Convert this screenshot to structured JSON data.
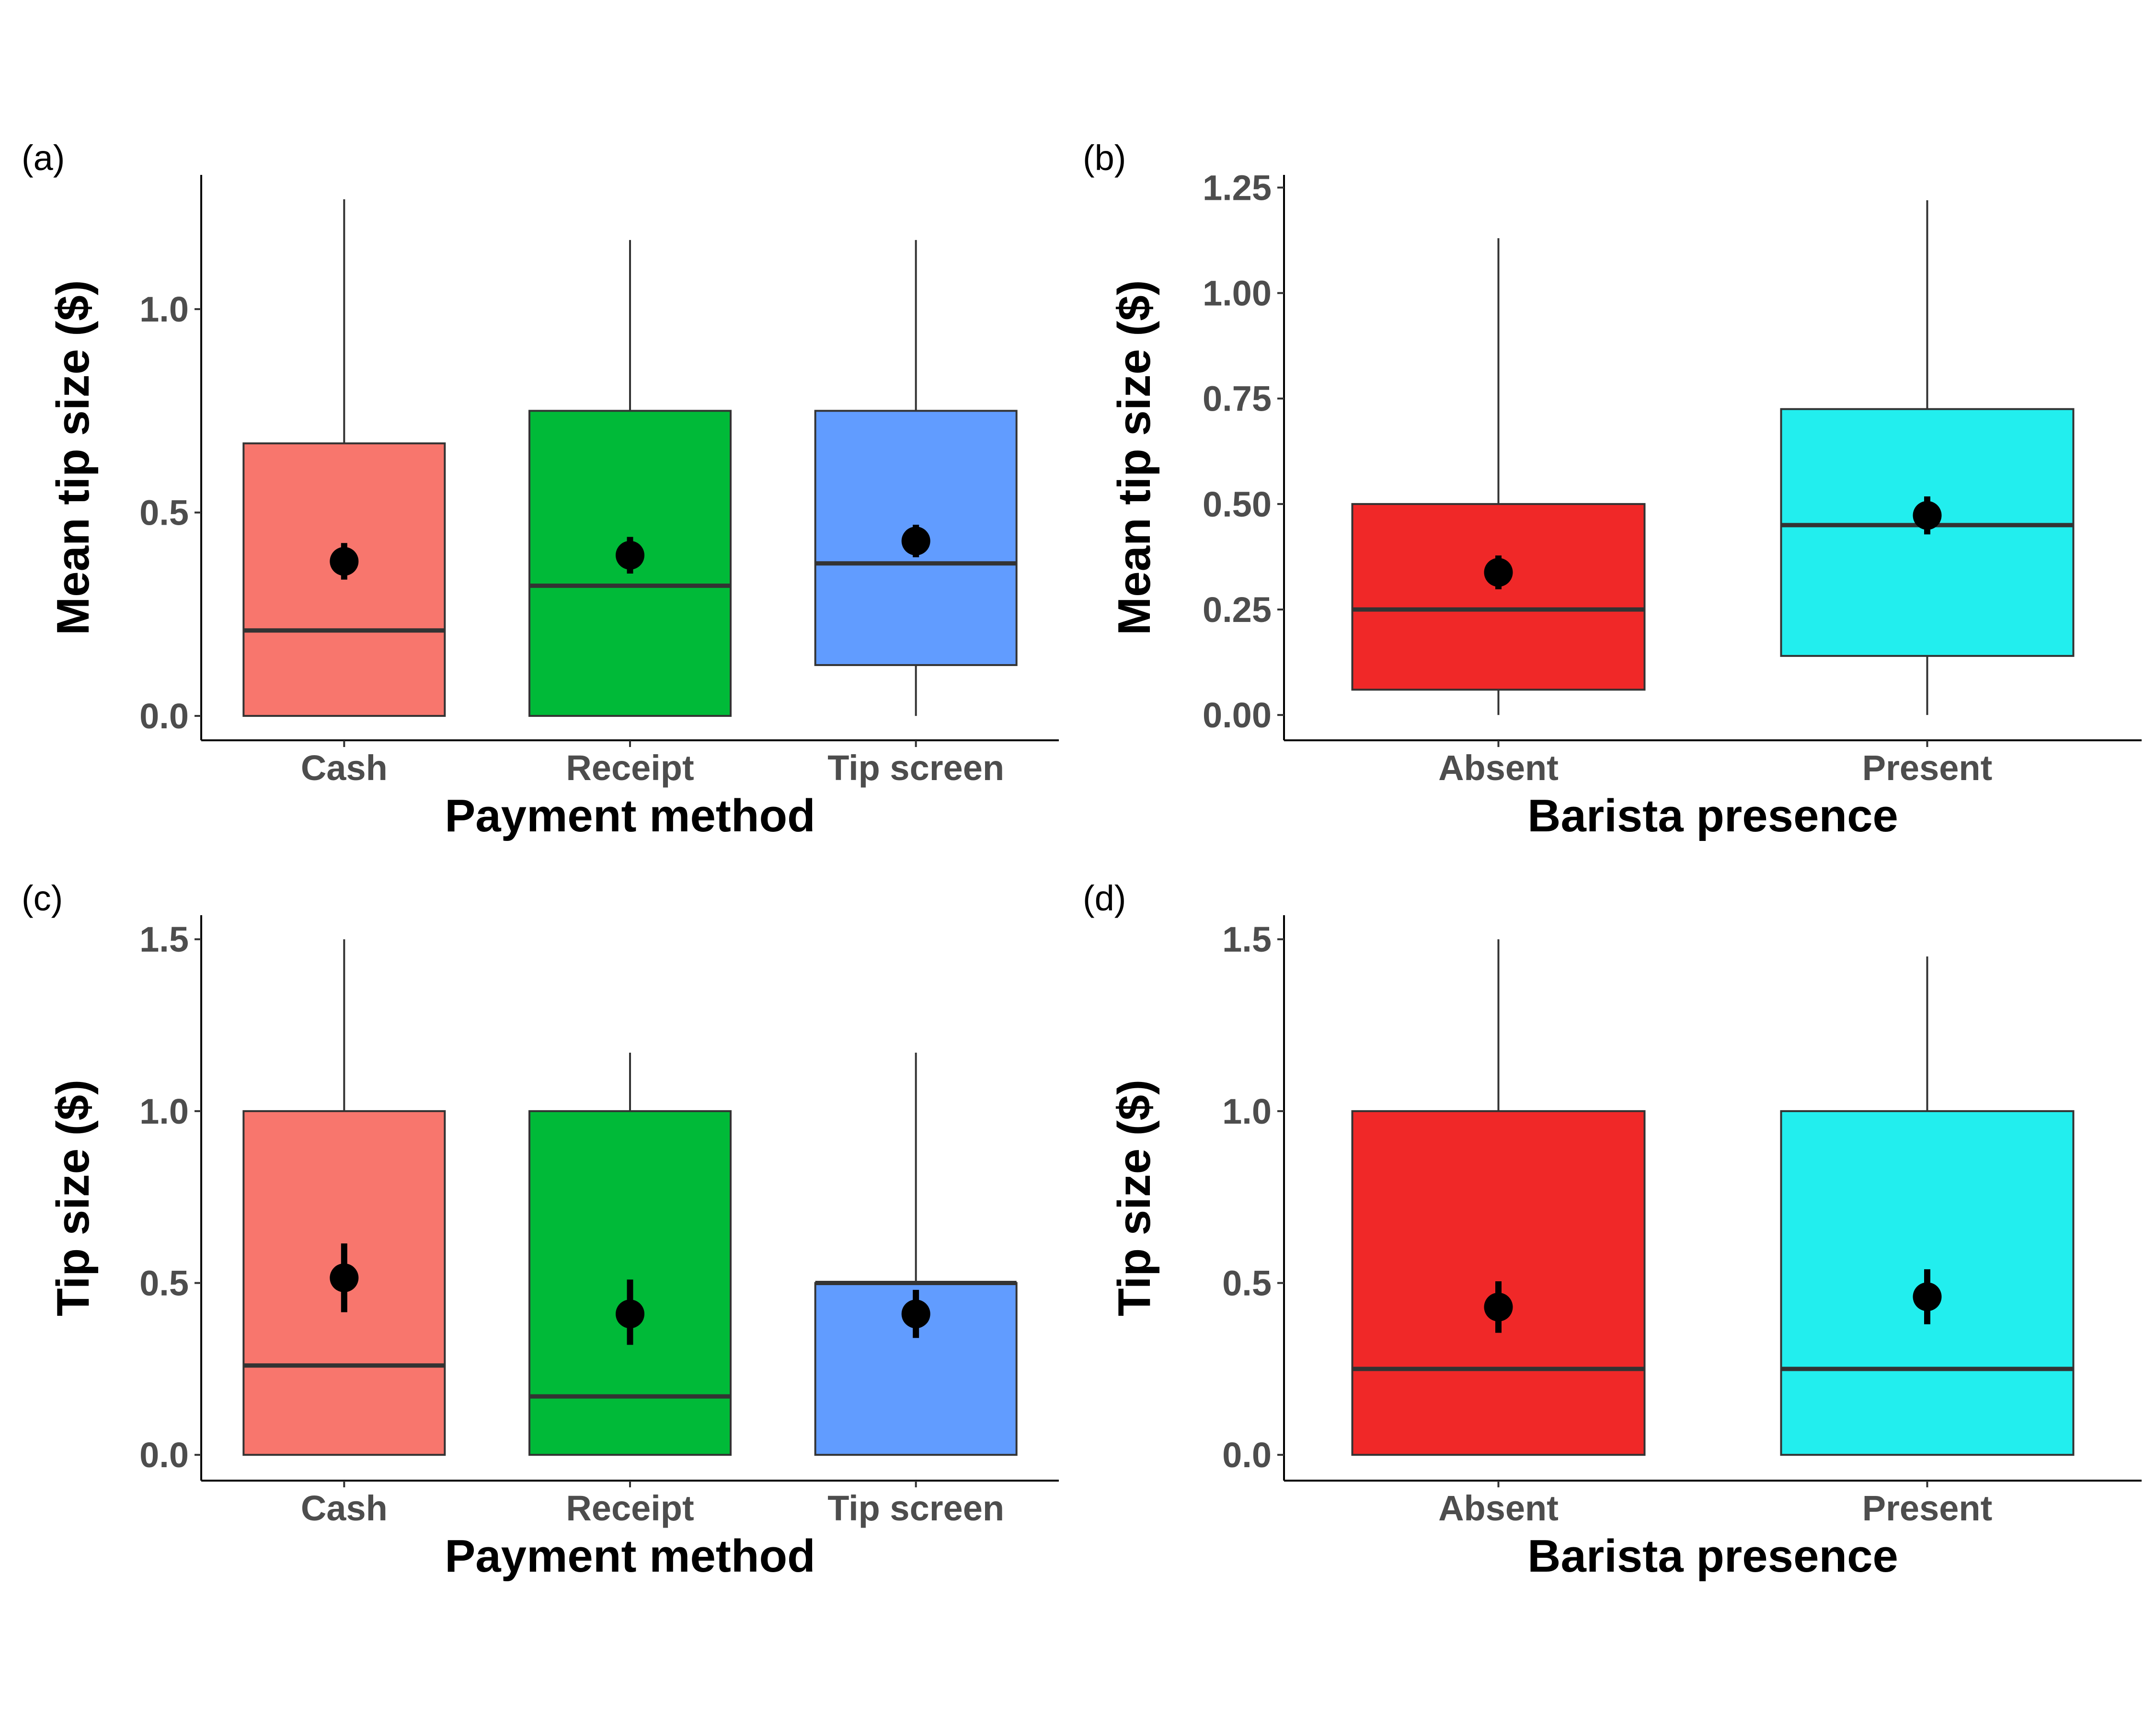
{
  "chart_data": [
    {
      "panel_label": "(a)",
      "type": "boxplot",
      "xlabel": "Payment method",
      "ylabel": "Mean tip size ($)",
      "ylim": [
        -0.06,
        1.33
      ],
      "yticks": [
        0.0,
        0.5,
        1.0
      ],
      "ytick_labels": [
        "0.0",
        "0.5",
        "1.0"
      ],
      "grid": false,
      "categories": [
        "Cash",
        "Receipt",
        "Tip screen"
      ],
      "colors": [
        "#F8766D",
        "#00BA38",
        "#619CFF"
      ],
      "boxes": [
        {
          "whisker_low": 0.0,
          "q1": 0.0,
          "median": 0.21,
          "q3": 0.67,
          "whisker_high": 1.27
        },
        {
          "whisker_low": 0.0,
          "q1": 0.0,
          "median": 0.32,
          "q3": 0.75,
          "whisker_high": 1.17
        },
        {
          "whisker_low": 0.0,
          "q1": 0.125,
          "median": 0.375,
          "q3": 0.75,
          "whisker_high": 1.17
        }
      ],
      "means": [
        0.38,
        0.395,
        0.43
      ],
      "error_bars": [
        [
          0.335,
          0.425
        ],
        [
          0.35,
          0.44
        ],
        [
          0.39,
          0.47
        ]
      ]
    },
    {
      "panel_label": "(b)",
      "type": "boxplot",
      "xlabel": "Barista presence",
      "ylabel": "Mean tip size ($)",
      "ylim": [
        -0.06,
        1.28
      ],
      "yticks": [
        0.0,
        0.25,
        0.5,
        0.75,
        1.0,
        1.25
      ],
      "ytick_labels": [
        "0.00",
        "0.25",
        "0.50",
        "0.75",
        "1.00",
        "1.25"
      ],
      "grid": false,
      "categories": [
        "Absent",
        "Present"
      ],
      "colors": [
        "#F02828",
        "#22EEEE"
      ],
      "boxes": [
        {
          "whisker_low": 0.0,
          "q1": 0.06,
          "median": 0.25,
          "q3": 0.5,
          "whisker_high": 1.13
        },
        {
          "whisker_low": 0.0,
          "q1": 0.14,
          "median": 0.45,
          "q3": 0.725,
          "whisker_high": 1.22
        }
      ],
      "means": [
        0.338,
        0.473
      ],
      "error_bars": [
        [
          0.298,
          0.378
        ],
        [
          0.428,
          0.518
        ]
      ]
    },
    {
      "panel_label": "(c)",
      "type": "boxplot",
      "xlabel": "Payment method",
      "ylabel": "Tip size ($)",
      "ylim": [
        -0.075,
        1.57
      ],
      "yticks": [
        0.0,
        0.5,
        1.0,
        1.5
      ],
      "ytick_labels": [
        "0.0",
        "0.5",
        "1.0",
        "1.5"
      ],
      "grid": false,
      "categories": [
        "Cash",
        "Receipt",
        "Tip screen"
      ],
      "colors": [
        "#F8766D",
        "#00BA38",
        "#619CFF"
      ],
      "boxes": [
        {
          "whisker_low": 0.0,
          "q1": 0.0,
          "median": 0.26,
          "q3": 1.0,
          "whisker_high": 1.5
        },
        {
          "whisker_low": 0.0,
          "q1": 0.0,
          "median": 0.17,
          "q3": 1.0,
          "whisker_high": 1.17
        },
        {
          "whisker_low": 0.0,
          "q1": 0.0,
          "median": 0.5,
          "q3": 0.5,
          "whisker_high": 1.17
        }
      ],
      "means": [
        0.515,
        0.41,
        0.41
      ],
      "error_bars": [
        [
          0.415,
          0.615
        ],
        [
          0.32,
          0.51
        ],
        [
          0.34,
          0.48
        ]
      ]
    },
    {
      "panel_label": "(d)",
      "type": "boxplot",
      "xlabel": "Barista presence",
      "ylabel": "Tip size ($)",
      "ylim": [
        -0.075,
        1.57
      ],
      "yticks": [
        0.0,
        0.5,
        1.0,
        1.5
      ],
      "ytick_labels": [
        "0.0",
        "0.5",
        "1.0",
        "1.5"
      ],
      "grid": false,
      "categories": [
        "Absent",
        "Present"
      ],
      "colors": [
        "#F02828",
        "#22EEEE"
      ],
      "boxes": [
        {
          "whisker_low": 0.0,
          "q1": 0.0,
          "median": 0.25,
          "q3": 1.0,
          "whisker_high": 1.5
        },
        {
          "whisker_low": 0.0,
          "q1": 0.0,
          "median": 0.25,
          "q3": 1.0,
          "whisker_high": 1.45
        }
      ],
      "means": [
        0.43,
        0.46
      ],
      "error_bars": [
        [
          0.355,
          0.505
        ],
        [
          0.38,
          0.54
        ]
      ]
    }
  ]
}
